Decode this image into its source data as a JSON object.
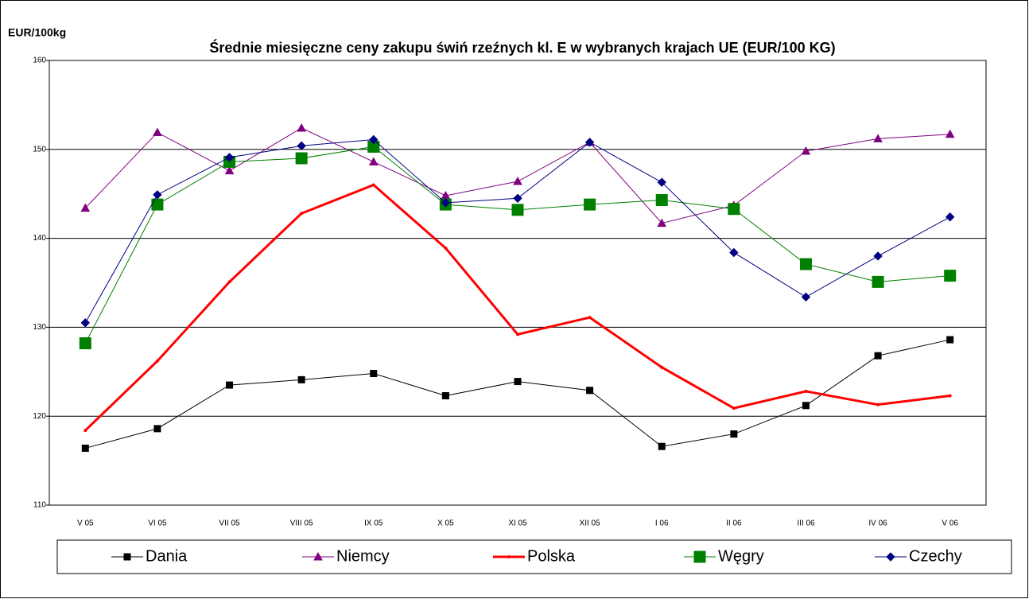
{
  "chart_data": {
    "type": "line",
    "title": "Średnie miesięczne ceny zakupu świń rzeźnych kl. E w wybranych krajach UE (EUR/100 KG)",
    "y_label": "EUR/100kg",
    "categories": [
      "V 05",
      "VI 05",
      "VII 05",
      "VIII 05",
      "IX 05",
      "X 05",
      "XI 05",
      "XII 05",
      "I 06",
      "II 06",
      "III 06",
      "IV 06",
      "V 06"
    ],
    "series": [
      {
        "name": "Dania",
        "color": "#000000",
        "marker": "square",
        "line_width": 1,
        "values": [
          116.4,
          118.6,
          123.5,
          124.1,
          124.8,
          122.3,
          123.9,
          122.9,
          116.6,
          118.0,
          121.2,
          126.8,
          128.6
        ]
      },
      {
        "name": "Niemcy",
        "color": "#800080",
        "marker": "triangle",
        "line_width": 1,
        "values": [
          143.4,
          151.9,
          147.6,
          152.4,
          148.6,
          144.8,
          146.4,
          150.8,
          141.7,
          143.7,
          149.8,
          151.2,
          151.7
        ]
      },
      {
        "name": "Polska",
        "color": "#ff0000",
        "marker": "circle",
        "line_width": 3,
        "values": [
          118.4,
          126.2,
          135.1,
          142.8,
          146.0,
          138.9,
          129.2,
          131.1,
          125.5,
          120.9,
          122.8,
          121.3,
          122.3
        ]
      },
      {
        "name": "Węgry",
        "color": "#008000",
        "marker": "big-square",
        "line_width": 1,
        "values": [
          128.2,
          143.8,
          148.6,
          149.0,
          150.3,
          143.8,
          143.2,
          143.8,
          144.3,
          143.3,
          137.1,
          135.1,
          135.8
        ]
      },
      {
        "name": "Czechy",
        "color": "#000080",
        "marker": "diamond",
        "line_width": 1,
        "values": [
          130.5,
          144.9,
          149.1,
          150.4,
          151.1,
          144.0,
          144.5,
          150.8,
          146.3,
          138.4,
          133.4,
          138.0,
          142.4
        ]
      }
    ],
    "ylim": [
      110,
      160
    ],
    "yticks": [
      110,
      120,
      130,
      140,
      150,
      160
    ],
    "grid": true,
    "legend": "bottom"
  }
}
